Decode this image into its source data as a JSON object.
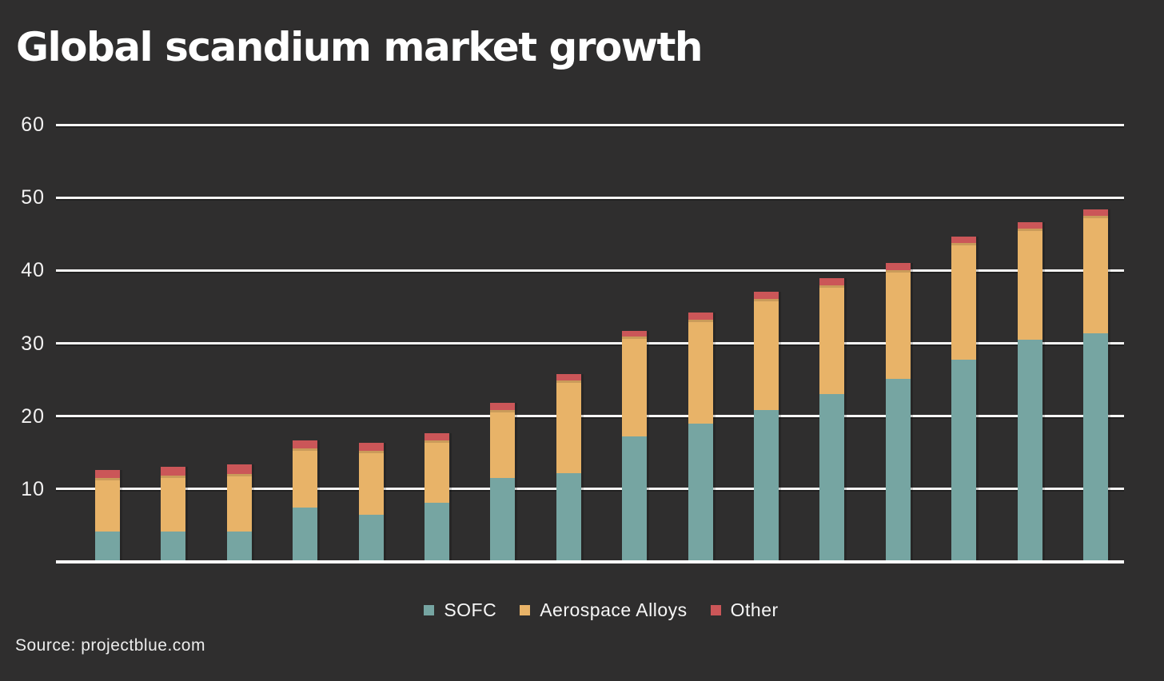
{
  "page": {
    "background_color": "#2f2e2e",
    "source_note": "Source: projectblue.com"
  },
  "chart_data": {
    "type": "bar",
    "subtype": "stacked-vertical-columns",
    "title": "Global scandium market growth",
    "xlabel": "",
    "ylabel": "",
    "x_axis": {
      "labels_visible": false,
      "bar_count": 16
    },
    "y_axis": {
      "ticks": [
        60,
        50,
        40,
        30,
        20,
        10
      ],
      "range": [
        0,
        60
      ],
      "gridlines": true,
      "gridline_color": "#f7f6f5",
      "baseline_color": "#fdfdfd"
    },
    "legend": {
      "position": "bottom"
    },
    "series": [
      {
        "name": "SOFC",
        "color": "#76a5a2",
        "values": [
          3.9,
          3.9,
          3.9,
          7.2,
          6.3,
          7.9,
          11.3,
          12.0,
          17.0,
          18.8,
          20.6,
          22.8,
          24.9,
          27.5,
          30.3,
          31.2
        ]
      },
      {
        "name": "Aerospace Alloys",
        "color": "#e8b368",
        "values": [
          7.4,
          7.7,
          8.0,
          8.2,
          8.7,
          8.6,
          9.3,
          12.7,
          13.7,
          14.2,
          15.3,
          14.9,
          14.9,
          16.1,
          15.2,
          16.1
        ]
      },
      {
        "name": "Other",
        "color": "#cb5658",
        "values": [
          1.1,
          1.2,
          1.3,
          1.1,
          1.1,
          1.0,
          1.0,
          0.9,
          0.8,
          1.0,
          1.0,
          1.0,
          1.0,
          0.8,
          0.9,
          0.9
        ]
      }
    ],
    "stacked_totals": [
      12.4,
      12.8,
      13.2,
      16.5,
      16.1,
      17.5,
      21.6,
      25.6,
      31.5,
      34.0,
      36.9,
      38.7,
      40.8,
      44.4,
      46.4,
      48.2
    ]
  }
}
